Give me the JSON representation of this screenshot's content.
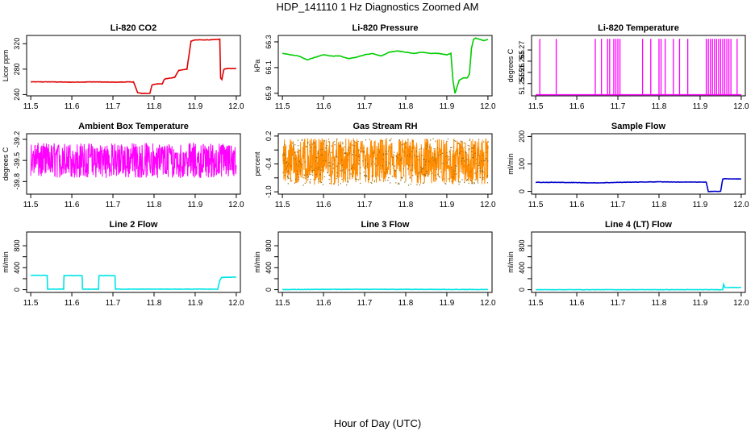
{
  "figure": {
    "title": "HDP_141110  1 Hz Diagnostics Zoomed AM",
    "xlabel": "Hour of Day (UTC)"
  },
  "chart_data": [
    {
      "type": "line",
      "title": "Li-820 CO2",
      "ylabel": "Licor ppm",
      "color": "#dd0000",
      "xlim": [
        11.49,
        12.01
      ],
      "ylim": [
        238,
        333
      ],
      "xticks": [
        "11.5",
        "11.6",
        "11.7",
        "11.8",
        "11.9",
        "12.0"
      ],
      "yticks": [
        240,
        280,
        320
      ],
      "series": [
        {
          "x": [
            11.5,
            11.55,
            11.6,
            11.65,
            11.7,
            11.75,
            11.755,
            11.76,
            11.77,
            11.78,
            11.79,
            11.795,
            11.8,
            11.81,
            11.82,
            11.825,
            11.83,
            11.84,
            11.85,
            11.86,
            11.87,
            11.88,
            11.885,
            11.89,
            11.9,
            11.93,
            11.96,
            11.962,
            11.965,
            11.97,
            11.98,
            12.0
          ],
          "y": [
            260,
            260,
            259.5,
            260,
            259.5,
            260,
            252,
            243,
            242,
            242,
            242,
            255,
            256,
            257,
            257,
            264,
            265,
            266,
            267,
            278,
            279,
            280,
            302,
            324,
            326,
            326,
            327,
            266,
            264,
            280,
            281,
            281
          ]
        }
      ]
    },
    {
      "type": "line",
      "title": "Li-820 Pressure",
      "ylabel": "kPa",
      "color": "#00cc00",
      "xlim": [
        11.49,
        12.01
      ],
      "ylim": [
        65.88,
        66.35
      ],
      "xticks": [
        "11.5",
        "11.6",
        "11.7",
        "11.8",
        "11.9",
        "12.0"
      ],
      "yticks": [
        65.9,
        66.1,
        66.3
      ],
      "series": [
        {
          "x": [
            11.5,
            11.52,
            11.54,
            11.56,
            11.58,
            11.6,
            11.62,
            11.64,
            11.66,
            11.68,
            11.7,
            11.72,
            11.74,
            11.76,
            11.78,
            11.8,
            11.82,
            11.84,
            11.86,
            11.88,
            11.9,
            11.91,
            11.915,
            11.92,
            11.93,
            11.94,
            11.95,
            11.955,
            11.96,
            11.965,
            11.97,
            11.98,
            11.99,
            12.0
          ],
          "y": [
            66.21,
            66.2,
            66.19,
            66.16,
            66.18,
            66.2,
            66.19,
            66.19,
            66.17,
            66.18,
            66.2,
            66.21,
            66.19,
            66.22,
            66.23,
            66.22,
            66.21,
            66.22,
            66.21,
            66.21,
            66.2,
            66.21,
            66.0,
            65.9,
            66.0,
            66.02,
            66.02,
            66.05,
            66.25,
            66.32,
            66.33,
            66.32,
            66.31,
            66.32
          ]
        }
      ]
    },
    {
      "type": "line",
      "title": "Li-820 Temperature",
      "ylabel": "degrees C",
      "color": "#ff00ff",
      "xlim": [
        11.49,
        12.01
      ],
      "ylim": [
        51.2495,
        51.2765
      ],
      "xticks": [
        "11.5",
        "11.6",
        "11.7",
        "11.8",
        "11.9",
        "12.0"
      ],
      "yticks": [
        51.255,
        51.26,
        51.265,
        51.27
      ],
      "baseline": 51.25,
      "series": [
        {
          "spike_x": [
            11.51,
            11.55,
            11.645,
            11.66,
            11.675,
            11.68,
            11.69,
            11.695,
            11.7,
            11.705,
            11.76,
            11.78,
            11.8,
            11.805,
            11.815,
            11.835,
            11.85,
            11.87,
            11.915,
            11.92,
            11.925,
            11.93,
            11.935,
            11.94,
            11.945,
            11.95,
            11.955,
            11.96,
            11.965,
            11.97,
            11.975,
            11.99
          ],
          "spike_y": 51.275
        }
      ]
    },
    {
      "type": "line",
      "title": "Ambient Box Temperature",
      "ylabel": "degrees C",
      "color": "#ff00ff",
      "xlim": [
        11.49,
        12.01
      ],
      "ylim": [
        -39.98,
        -39.12
      ],
      "xticks": [
        "11.5",
        "11.6",
        "11.7",
        "11.8",
        "11.9",
        "12.0"
      ],
      "yticks": [
        -39.8,
        -39.5,
        -39.2
      ],
      "band": {
        "low": -39.75,
        "high": -39.25,
        "x_start": 11.5,
        "x_end": 12.0
      }
    },
    {
      "type": "line",
      "title": "Gas Stream RH",
      "ylabel": "percent",
      "color": "#ff8c00",
      "marker_color": "#8b6914",
      "xlim": [
        11.49,
        12.01
      ],
      "ylim": [
        -1.05,
        0.25
      ],
      "xticks": [
        "11.5",
        "11.6",
        "11.7",
        "11.8",
        "11.9",
        "12.0"
      ],
      "yticks": [
        -1.0,
        -0.7,
        -0.4,
        -0.1,
        0.2
      ],
      "ytick_labels": [
        "-1.0",
        "",
        "-0.4",
        "",
        "0.2"
      ],
      "band": {
        "low": -0.85,
        "high": 0.15,
        "x_start": 11.5,
        "x_end": 12.0
      }
    },
    {
      "type": "line",
      "title": "Sample Flow",
      "ylabel": "ml/min",
      "color": "#0000cc",
      "xlim": [
        11.49,
        12.01
      ],
      "ylim": [
        -10,
        210
      ],
      "xticks": [
        "11.5",
        "11.6",
        "11.7",
        "11.8",
        "11.9",
        "12.0"
      ],
      "yticks": [
        0,
        100,
        200
      ],
      "series": [
        {
          "x": [
            11.5,
            11.55,
            11.6,
            11.65,
            11.7,
            11.75,
            11.8,
            11.85,
            11.9,
            11.915,
            11.92,
            11.95,
            11.955,
            11.96,
            12.0
          ],
          "y": [
            33,
            33,
            32,
            31,
            33,
            34,
            35,
            34,
            34,
            33,
            0,
            0,
            45,
            46,
            45
          ]
        }
      ]
    },
    {
      "type": "line",
      "title": "Line 2 Flow",
      "ylabel": "ml/min",
      "color": "#00e5e5",
      "xlim": [
        11.49,
        12.01
      ],
      "ylim": [
        -50,
        1050
      ],
      "xticks": [
        "11.5",
        "11.6",
        "11.7",
        "11.8",
        "11.9",
        "12.0"
      ],
      "yticks": [
        0,
        200,
        400,
        600,
        800
      ],
      "ytick_labels": [
        "0",
        "",
        "400",
        "",
        "800"
      ],
      "series": [
        {
          "x": [
            11.5,
            11.54,
            11.541,
            11.58,
            11.581,
            11.625,
            11.626,
            11.665,
            11.666,
            11.705,
            11.706,
            11.955,
            11.96,
            11.965,
            12.0
          ],
          "y": [
            260,
            260,
            10,
            10,
            255,
            255,
            10,
            10,
            255,
            255,
            10,
            10,
            170,
            225,
            230
          ]
        }
      ]
    },
    {
      "type": "line",
      "title": "Line 3 Flow",
      "ylabel": "ml/min",
      "color": "#00e5e5",
      "xlim": [
        11.49,
        12.01
      ],
      "ylim": [
        -50,
        1050
      ],
      "xticks": [
        "11.5",
        "11.6",
        "11.7",
        "11.8",
        "11.9",
        "12.0"
      ],
      "yticks": [
        0,
        200,
        400,
        600,
        800
      ],
      "ytick_labels": [
        "0",
        "",
        "400",
        "",
        "800"
      ],
      "series": [
        {
          "x": [
            11.5,
            11.6,
            11.7,
            11.8,
            11.9,
            12.0
          ],
          "y": [
            3,
            5,
            7,
            6,
            4,
            3
          ]
        }
      ]
    },
    {
      "type": "line",
      "title": "Line 4 (LT) Flow",
      "ylabel": "ml/min",
      "color": "#00e5e5",
      "xlim": [
        11.49,
        12.01
      ],
      "ylim": [
        -50,
        1050
      ],
      "xticks": [
        "11.5",
        "11.6",
        "11.7",
        "11.8",
        "11.9",
        "12.0"
      ],
      "yticks": [
        0,
        200,
        400,
        600,
        800
      ],
      "ytick_labels": [
        "0",
        "",
        "400",
        "",
        "800"
      ],
      "series": [
        {
          "x": [
            11.5,
            11.7,
            11.9,
            11.955,
            11.957,
            11.96,
            11.965,
            12.0
          ],
          "y": [
            0,
            0,
            0,
            0,
            100,
            40,
            40,
            40
          ]
        }
      ]
    }
  ]
}
